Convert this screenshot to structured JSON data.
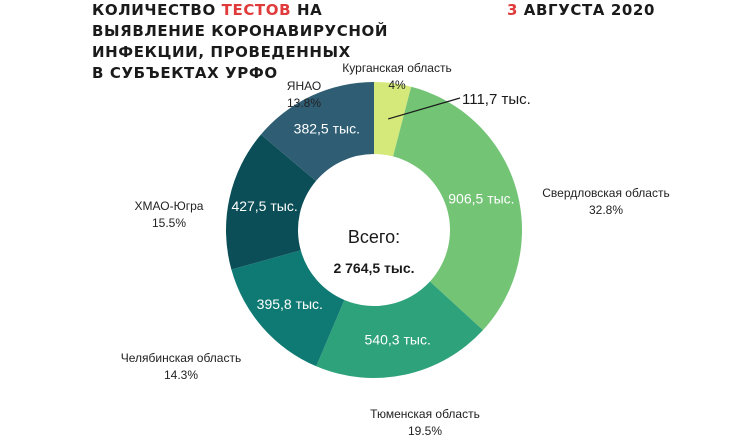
{
  "header": {
    "title_line1_pre": "КОЛИЧЕСТВО ",
    "title_line1_accent": "ТЕСТОВ",
    "title_line1_post": " НА",
    "title_line2": "ВЫЯВЛЕНИЕ КОРОНАВИРУСНОЙ",
    "title_line3": "ИНФЕКЦИИ, ПРОВЕДЕННЫХ",
    "title_line4": "В СУБЪЕКТАХ УРФО",
    "date_accent": "3",
    "date_rest": " АВГУСТА 2020"
  },
  "chart_data": {
    "type": "pie",
    "donut": true,
    "unit": "тыс.",
    "center_label": "Всего:",
    "center_total": "2 764,5 тыс.",
    "slices": [
      {
        "name": "Курганская область",
        "percent": "4%",
        "value": 111.7,
        "value_label": "111,7 тыс.",
        "color": "#d4e97a"
      },
      {
        "name": "Свердловская область",
        "percent": "32.8%",
        "value": 906.5,
        "value_label": "906,5 тыс.",
        "color": "#74c476"
      },
      {
        "name": "Тюменская область",
        "percent": "19.5%",
        "value": 540.3,
        "value_label": "540,3 тыс.",
        "color": "#2ea27a"
      },
      {
        "name": "Челябинская область",
        "percent": "14.3%",
        "value": 395.8,
        "value_label": "395,8 тыс.",
        "color": "#0f7a73"
      },
      {
        "name": "ХМАО-Югра",
        "percent": "15.5%",
        "value": 427.5,
        "value_label": "427,5 тыс.",
        "color": "#0b4e57"
      },
      {
        "name": "ЯНАО",
        "percent": "13.8%",
        "value": 382.5,
        "value_label": "382,5 тыс.",
        "color": "#2e5d74"
      }
    ]
  }
}
